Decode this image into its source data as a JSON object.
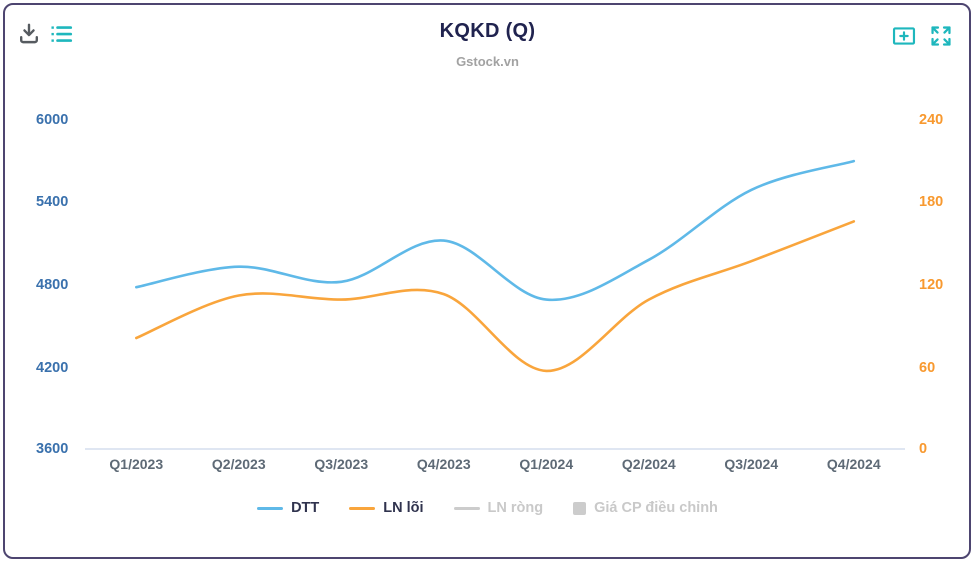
{
  "card": {
    "title": "KQKD (Q)",
    "subtitle": "Gstock.vn"
  },
  "toolbar": {
    "left_icons": [
      "download-icon",
      "list-icon"
    ],
    "right_icons": [
      "plus-box-icon",
      "fullscreen-icon"
    ],
    "icon_color_teal": "#1eb7bd",
    "icon_color_gray": "#565b60"
  },
  "chart_data": {
    "type": "line",
    "style": "spline",
    "title": "KQKD (Q)",
    "subtitle": "Gstock.vn",
    "categories": [
      "Q1/2023",
      "Q2/2023",
      "Q3/2023",
      "Q4/2023",
      "Q1/2024",
      "Q2/2024",
      "Q3/2024",
      "Q4/2024"
    ],
    "series": [
      {
        "name": "DTT",
        "axis": "left",
        "color": "#5fb9e8",
        "visible": true,
        "values": [
          4780,
          4930,
          4820,
          5120,
          4690,
          4980,
          5490,
          5700
        ]
      },
      {
        "name": "LN lõi",
        "axis": "right",
        "color": "#f9a53c",
        "visible": true,
        "values": [
          81,
          112,
          109,
          113,
          57,
          109,
          137,
          166
        ]
      },
      {
        "name": "LN ròng",
        "axis": "left",
        "color": "#cccccc",
        "visible": false,
        "values": []
      },
      {
        "name": "Giá CP điều chỉnh",
        "axis": "right",
        "color": "#cccccc",
        "visible": false,
        "values": [],
        "marker": "square"
      }
    ],
    "left_axis": {
      "min": 3600,
      "max": 6000,
      "ticks": [
        6000,
        5400,
        4800,
        4200,
        3600
      ],
      "color": "#3a71ad"
    },
    "right_axis": {
      "min": 0,
      "max": 240,
      "ticks": [
        240,
        180,
        120,
        60,
        0
      ],
      "color": "#f8992f"
    },
    "x_axis": {
      "line_color": "#ccd6eb",
      "label_color": "#5e6a76"
    },
    "grid": false,
    "legend_position": "bottom"
  },
  "legend": {
    "items": [
      {
        "label": "DTT",
        "swatch": "line",
        "color": "#5fb9e8",
        "enabled": true
      },
      {
        "label": "LN lõi",
        "swatch": "line",
        "color": "#f9a53c",
        "enabled": true
      },
      {
        "label": "LN ròng",
        "swatch": "line",
        "color": "#cccccc",
        "enabled": false
      },
      {
        "label": "Giá CP điều chỉnh",
        "swatch": "square",
        "color": "#cccccc",
        "enabled": false
      }
    ]
  }
}
